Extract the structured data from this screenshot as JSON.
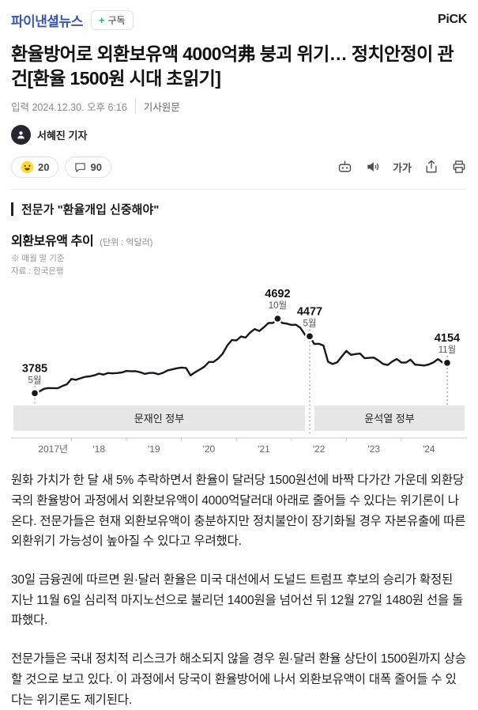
{
  "header": {
    "logo": "파이낸셜뉴스",
    "subscribe_plus": "+",
    "subscribe_label": "구독",
    "pick_label": "PiCK"
  },
  "article": {
    "title": "환율방어로 외환보유액 4000억弗 붕괴 위기… 정치안정이 관건[환율 1500원 시대 초읽기]",
    "meta_time": "입력 2024.12.30. 오후 6:16",
    "meta_source": "기사원문",
    "reporter": "서혜진 기자",
    "reactions": {
      "emoji_count": "20",
      "comment_count": "90"
    },
    "toolbar": {
      "text_size_label": "가가"
    },
    "quote": "전문가 \"환율개입 신중해야\"",
    "paragraphs": [
      "원화 가치가 한 달 새 5% 추락하면서 환율이 달러당 1500원선에 바짝 다가간 가운데 외환당국의 환율방어 과정에서 외환보유액이 4000억달러대 아래로 줄어들 수 있다는 위기론이 나온다. 전문가들은 현재 외환보유액이 충분하지만 정치불안이 장기화될 경우 자본유출에 따른 외환위기 가능성이 높아질 수 있다고 우려했다.",
      "30일 금융권에 따르면 원·달러 환율은 미국 대선에서 도널드 트럼프 후보의 승리가 확정된 지난 11월 6일 심리적 마지노선으로 불리던 1400원을 넘어선 뒤 12월 27일 1480원 선을 돌파했다.",
      "전문가들은 국내 정치적 리스크가 해소되지 않을 경우 원·달러 환율 상단이 1500원까지 상승할 것으로 보고 있다. 이 과정에서 당국이 환율방어에 나서 외환보유액이 대폭 줄어들 수 있다는 위기론도 제기된다."
    ]
  },
  "chart_data": {
    "type": "line",
    "title": "외환보유액 추이",
    "unit_label": "(단위 : 억달러)",
    "notes": [
      "※ 매월 말 기준",
      "자료 : 한국은행"
    ],
    "x_start": "2017-05",
    "x_end": "2024-11",
    "x_frequency": "monthly",
    "ylim": [
      3700,
      4750
    ],
    "values": [
      3785,
      3805,
      3838,
      3848,
      3847,
      3845,
      3872,
      3893,
      3958,
      3948,
      3967,
      3984,
      3990,
      4003,
      4024,
      4011,
      4030,
      4027,
      4030,
      4037,
      4055,
      4052,
      4053,
      4040,
      4020,
      4031,
      4031,
      4015,
      4033,
      4063,
      4075,
      4088,
      4097,
      4092,
      4002,
      4040,
      4073,
      4107,
      4165,
      4165,
      4205,
      4265,
      4364,
      4431,
      4427,
      4475,
      4461,
      4523,
      4565,
      4541,
      4587,
      4639,
      4640,
      4692,
      4639,
      4631,
      4615,
      4618,
      4578,
      4493,
      4477,
      4383,
      4386,
      4364,
      4168,
      4140,
      4161,
      4232,
      4300,
      4252,
      4261,
      4267,
      4210,
      4215,
      4218,
      4183,
      4141,
      4128,
      4170,
      4201,
      4158,
      4157,
      4193,
      4132,
      4128,
      4122,
      4135,
      4159,
      4200,
      4157,
      4154
    ],
    "year_ticks": [
      {
        "label": "2017년",
        "i": 4
      },
      {
        "label": "'18",
        "i": 14
      },
      {
        "label": "'19",
        "i": 26
      },
      {
        "label": "'20",
        "i": 38
      },
      {
        "label": "'21",
        "i": 50
      },
      {
        "label": "'22",
        "i": 62
      },
      {
        "label": "'23",
        "i": 74
      },
      {
        "label": "'24",
        "i": 86
      }
    ],
    "jan_ticks": [
      8,
      20,
      32,
      44,
      56,
      68,
      80
    ],
    "annotations": [
      {
        "i": 0,
        "value": "3785",
        "month": "5월",
        "extend": "band"
      },
      {
        "i": 53,
        "value": "4692",
        "month": "10월",
        "extend": "point"
      },
      {
        "i": 60,
        "value": "4477",
        "month": "5월",
        "extend": "gap"
      },
      {
        "i": 90,
        "value": "4154",
        "month": "11월",
        "extend": "band"
      }
    ],
    "bands": [
      {
        "label": "문재인 정부",
        "from_i": 0,
        "to_i": 60
      },
      {
        "label": "윤석열 정부",
        "from_i": 60,
        "to_i": 90
      }
    ],
    "line_color": "#17171f",
    "band_color": "#e6e6e6"
  }
}
